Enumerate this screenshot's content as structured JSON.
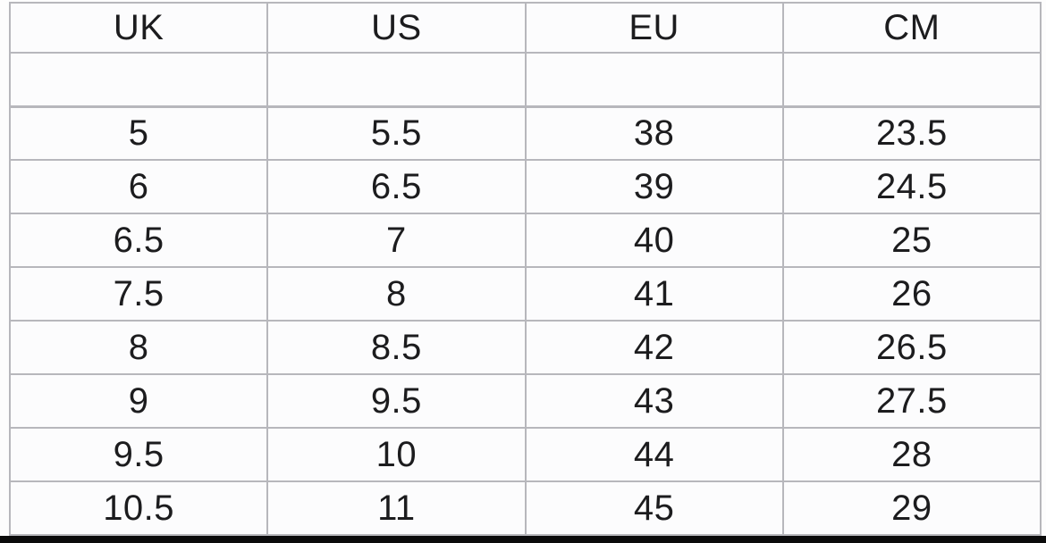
{
  "chart_data": {
    "type": "table",
    "columns": [
      "UK",
      "US",
      "EU",
      "CM"
    ],
    "blank_row_below_header": true,
    "rows": [
      [
        "5",
        "5.5",
        "38",
        "23.5"
      ],
      [
        "6",
        "6.5",
        "39",
        "24.5"
      ],
      [
        "6.5",
        "7",
        "40",
        "25"
      ],
      [
        "7.5",
        "8",
        "41",
        "26"
      ],
      [
        "8",
        "8.5",
        "42",
        "26.5"
      ],
      [
        "9",
        "9.5",
        "43",
        "27.5"
      ],
      [
        "9.5",
        "10",
        "44",
        "28"
      ],
      [
        "10.5",
        "11",
        "45",
        "29"
      ]
    ],
    "layout": {
      "grid": "on",
      "grid_line_color": "#b7b7bc",
      "cell_background": "#fcfcfd",
      "text_color": "#1c1c1e",
      "bottom_bar_color": "#0b0b0b"
    }
  }
}
